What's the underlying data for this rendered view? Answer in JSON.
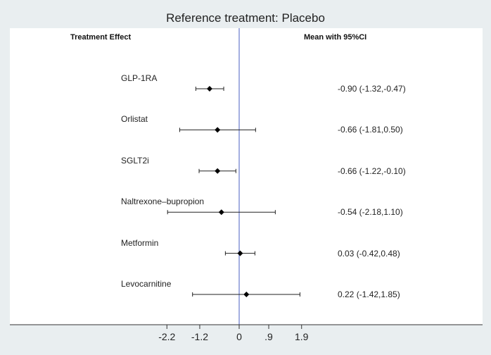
{
  "chart_data": {
    "type": "forest",
    "title": "Reference treatment: Placebo",
    "left_header": "Treatment Effect",
    "right_header": "Mean with 95%CI",
    "xticks": [
      -2.2,
      -1.2,
      0,
      0.9,
      1.9
    ],
    "xtick_labels": [
      "-2.2",
      "-1.2",
      "0",
      ".9",
      "1.9"
    ],
    "reference_line": 0,
    "reference_color": "#4a5fc1",
    "rows": [
      {
        "label": "GLP-1RA",
        "mean": -0.9,
        "lo": -1.32,
        "hi": -0.47,
        "text": "-0.90 (-1.32,-0.47)"
      },
      {
        "label": "Orlistat",
        "mean": -0.66,
        "lo": -1.81,
        "hi": 0.5,
        "text": "-0.66 (-1.81,0.50)"
      },
      {
        "label": "SGLT2i",
        "mean": -0.66,
        "lo": -1.22,
        "hi": -0.1,
        "text": "-0.66 (-1.22,-0.10)"
      },
      {
        "label": "Naltrexone–bupropion",
        "mean": -0.54,
        "lo": -2.18,
        "hi": 1.1,
        "text": "-0.54 (-2.18,1.10)"
      },
      {
        "label": "Metformin",
        "mean": 0.03,
        "lo": -0.42,
        "hi": 0.48,
        "text": "0.03 (-0.42,0.48)"
      },
      {
        "label": "Levocarnitine",
        "mean": 0.22,
        "lo": -1.42,
        "hi": 1.85,
        "text": "0.22 (-1.42,1.85)"
      }
    ]
  }
}
